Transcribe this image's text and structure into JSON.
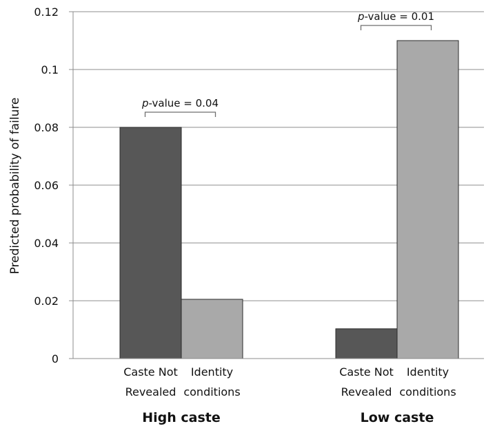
{
  "chart_data": {
    "type": "bar",
    "ylabel": "Predicted probability of failure",
    "ylim": [
      0,
      0.12
    ],
    "yticks": [
      "0",
      "0.02",
      "0.04",
      "0.06",
      "0.08",
      "0.1",
      "0.12"
    ],
    "grid": "horizontal",
    "groups": [
      {
        "label": "High caste",
        "bars": [
          {
            "line1": "Caste Not",
            "line2": "Revealed",
            "value": 0.08,
            "color": "#575757"
          },
          {
            "line1": "Identity",
            "line2": "conditions",
            "value": 0.0205,
            "color": "#a9a9a9"
          }
        ],
        "annotation": {
          "prefix": "p",
          "text": "-value = 0.04"
        }
      },
      {
        "label": "Low caste",
        "bars": [
          {
            "line1": "Caste Not",
            "line2": "Revealed",
            "value": 0.0103,
            "color": "#575757"
          },
          {
            "line1": "Identity",
            "line2": "conditions",
            "value": 0.11,
            "color": "#a9a9a9"
          }
        ],
        "annotation": {
          "prefix": "p",
          "text": "-value = 0.01"
        }
      }
    ]
  }
}
